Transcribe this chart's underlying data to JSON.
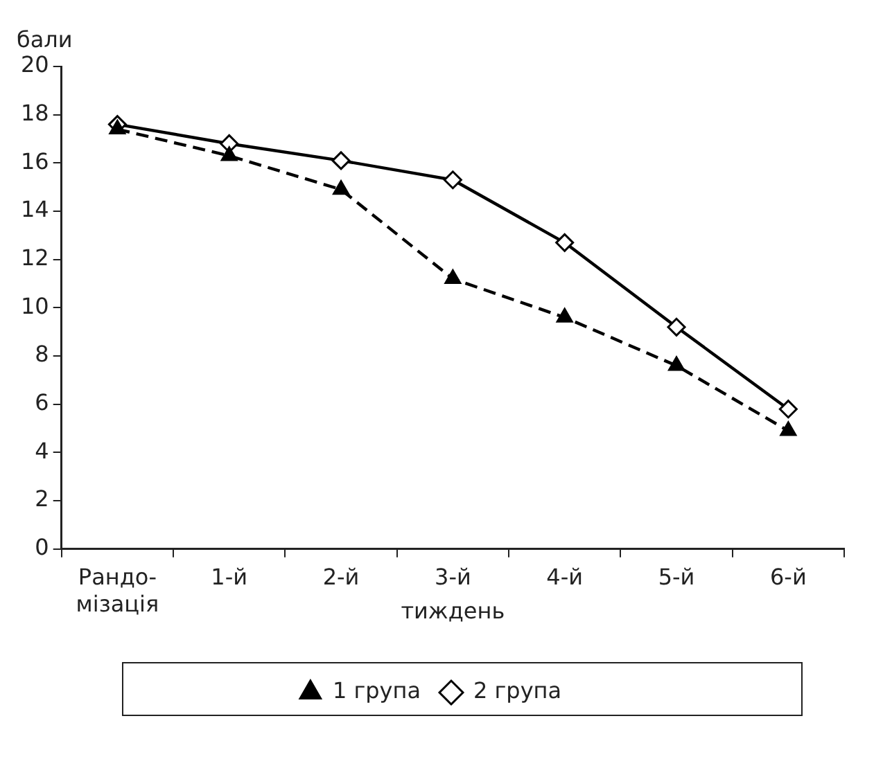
{
  "chart_data": {
    "type": "line",
    "ylabel": "бали",
    "xlabel": "тиждень",
    "categories": [
      "Рандо-\nмізація",
      "1-й",
      "2-й",
      "3-й",
      "4-й",
      "5-й",
      "6-й"
    ],
    "series": [
      {
        "name": "1 група",
        "color": "#000000",
        "marker": "triangle",
        "line_style": "dashed",
        "values": [
          17.4,
          16.3,
          14.9,
          11.2,
          9.6,
          7.6,
          4.9
        ]
      },
      {
        "name": "2 група",
        "color": "#000000",
        "marker": "diamond",
        "line_style": "solid",
        "values": [
          17.6,
          16.8,
          16.1,
          15.3,
          12.7,
          9.2,
          5.8
        ]
      }
    ],
    "ylim": [
      0,
      20
    ],
    "yticks": [
      0,
      2,
      4,
      6,
      8,
      10,
      12,
      14,
      16,
      18,
      20
    ],
    "grid": false,
    "legend": "bottom"
  }
}
